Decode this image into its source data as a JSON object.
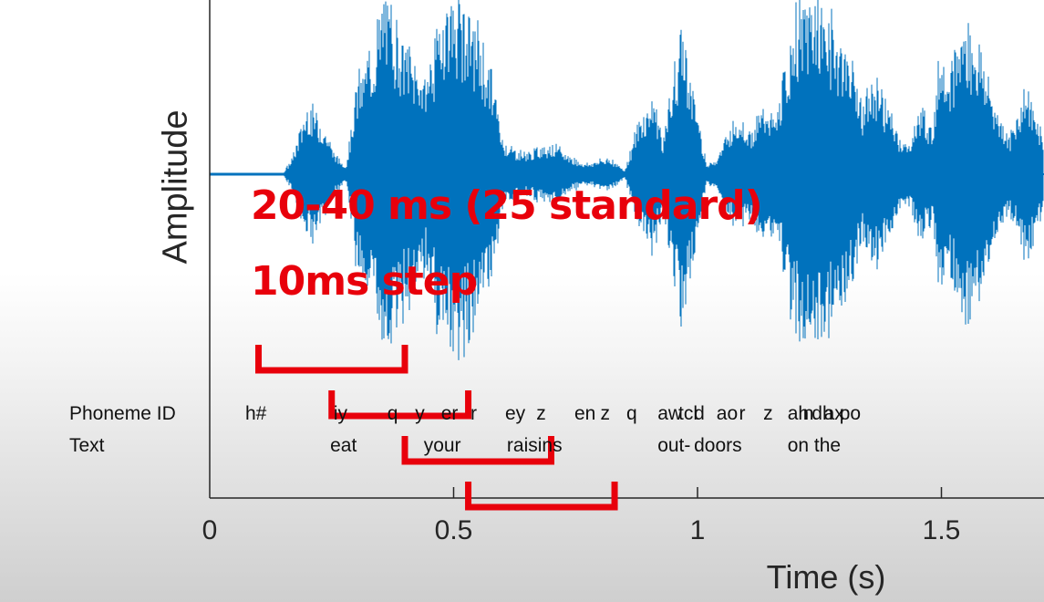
{
  "chart_data": {
    "type": "line",
    "xlabel": "Time (s)",
    "ylabel": "Amplitude",
    "x_ticks": [
      "0",
      "0.5",
      "1",
      "1.5"
    ],
    "xlim": [
      0,
      1.72
    ],
    "waveform_envelope": {
      "t": [
        0.0,
        0.15,
        0.17,
        0.2,
        0.23,
        0.26,
        0.28,
        0.3,
        0.33,
        0.36,
        0.38,
        0.4,
        0.44,
        0.48,
        0.5,
        0.52,
        0.55,
        0.58,
        0.6,
        0.62,
        0.65,
        0.7,
        0.74,
        0.77,
        0.8,
        0.82,
        0.85,
        0.88,
        0.91,
        0.93,
        0.95,
        0.97,
        0.99,
        1.01,
        1.02,
        1.04,
        1.08,
        1.11,
        1.14,
        1.16,
        1.2,
        1.24,
        1.28,
        1.31,
        1.34,
        1.37,
        1.4,
        1.43,
        1.46,
        1.48,
        1.5,
        1.52,
        1.55,
        1.58,
        1.61,
        1.64,
        1.67,
        1.7,
        1.72
      ],
      "amp": [
        0.0,
        0.0,
        0.1,
        0.4,
        0.3,
        0.1,
        0.05,
        0.5,
        0.7,
        1.0,
        0.9,
        0.75,
        0.55,
        0.95,
        1.0,
        0.95,
        0.8,
        0.55,
        0.2,
        0.15,
        0.12,
        0.18,
        0.1,
        0.06,
        0.08,
        0.1,
        0.02,
        0.3,
        0.45,
        0.2,
        0.55,
        0.85,
        0.5,
        0.2,
        0.05,
        0.1,
        0.35,
        0.25,
        0.4,
        0.3,
        0.9,
        1.0,
        0.85,
        0.7,
        0.4,
        0.55,
        0.3,
        0.15,
        0.4,
        0.25,
        0.75,
        0.6,
        0.9,
        0.7,
        0.4,
        0.2,
        0.5,
        0.3,
        0.1
      ]
    },
    "phoneme_row_label": "Phoneme ID",
    "text_row_label": "Text",
    "phonemes": [
      {
        "label": "h#",
        "t": 0.145
      },
      {
        "label": "iy",
        "t": 0.4
      },
      {
        "label": "q",
        "t": 0.555
      },
      {
        "label": "y",
        "t": 0.635
      },
      {
        "label": "er",
        "t": 0.71
      },
      {
        "label": "r",
        "t": 0.795
      },
      {
        "label": "ey",
        "t": 0.895
      },
      {
        "label": "z",
        "t": 0.985
      },
      {
        "label": "en",
        "t": 1.095
      },
      {
        "label": "z",
        "t": 1.17
      },
      {
        "label": "q",
        "t": 1.245
      },
      {
        "label": "aw",
        "t": 1.335
      },
      {
        "label": "tcl",
        "t": 1.395
      },
      {
        "label": "d",
        "t": 1.44
      },
      {
        "label": "ao",
        "t": 1.505
      },
      {
        "label": "r",
        "t": 1.57
      },
      {
        "label": "z",
        "t": 1.64
      },
      {
        "label": "ah",
        "t": 1.71
      },
      {
        "label": "n",
        "t": 1.755
      },
      {
        "label": "dh",
        "t": 1.78
      },
      {
        "label": "ax",
        "t": 1.815
      },
      {
        "label": "po",
        "t": 1.86
      }
    ],
    "words": [
      {
        "label": "eat",
        "t": 0.39
      },
      {
        "label": "your",
        "t": 0.66
      },
      {
        "label": "raisins",
        "t": 0.9
      },
      {
        "label": "out-",
        "t": 1.335
      },
      {
        "label": "doors",
        "t": 1.44
      },
      {
        "label": "on the",
        "t": 1.71
      }
    ]
  },
  "annotations": {
    "line1": "20-40 ms (25 standard)",
    "line2": "10ms step",
    "color": "#e8000b",
    "frames": [
      {
        "start": 0.1,
        "end": 0.4
      },
      {
        "start": 0.25,
        "end": 0.53
      },
      {
        "start": 0.4,
        "end": 0.7
      },
      {
        "start": 0.53,
        "end": 0.83
      }
    ]
  },
  "colors": {
    "wave": "#0072bd",
    "axis": "#262626"
  }
}
